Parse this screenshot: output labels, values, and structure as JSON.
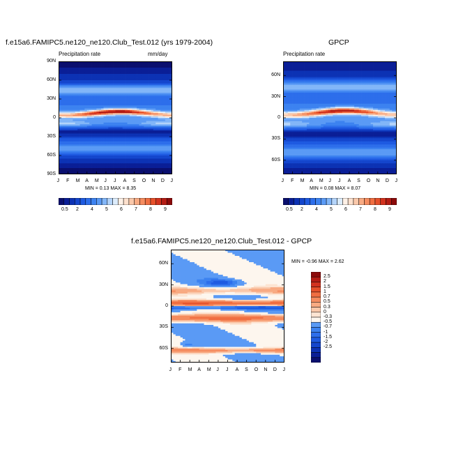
{
  "colors": {
    "blues": [
      "#0a0f6e",
      "#0a1e96",
      "#0c32b4",
      "#1446cd",
      "#1e5ae1",
      "#2d6eeb",
      "#3c82f0",
      "#5a9af5",
      "#82b6f8",
      "#b4d4fa",
      "#dcecfc"
    ],
    "whites": [
      "#fdf0e6",
      "#fde0cd"
    ],
    "reds": [
      "#fac8aa",
      "#f8aa82",
      "#f58c5f",
      "#f06e41",
      "#e6502a",
      "#d2321e",
      "#b41c14",
      "#8c0a0a"
    ]
  },
  "chart_data": [
    {
      "id": "model",
      "type": "heatmap",
      "title": "f.e15a6.FAMIPC5.ne120_ne120.Club_Test.012 (yrs 1979-2004)",
      "left_label": "Precipitation rate",
      "right_label": "mm/day",
      "x_ticks": [
        "J",
        "F",
        "M",
        "A",
        "M",
        "J",
        "J",
        "A",
        "S",
        "O",
        "N",
        "D",
        "J"
      ],
      "y_ticks": [
        "90N",
        "60N",
        "30N",
        "0",
        "30S",
        "60S",
        "90S"
      ],
      "y_values": [
        90,
        60,
        30,
        0,
        -30,
        -60,
        -90
      ],
      "stats": "MIN =   0.13 MAX =   8.35",
      "colorbar_labels": [
        "0.5",
        "2",
        "4",
        "5",
        "6",
        "7",
        "8",
        "9"
      ]
    },
    {
      "id": "gpcp",
      "type": "heatmap",
      "title": "GPCP",
      "left_label": "Precipitation rate",
      "x_ticks": [
        "J",
        "F",
        "M",
        "A",
        "M",
        "J",
        "J",
        "A",
        "S",
        "O",
        "N",
        "D",
        "J"
      ],
      "y_ticks": [
        "60N",
        "30N",
        "0",
        "30S",
        "60S"
      ],
      "y_values": [
        60,
        30,
        0,
        -30,
        -60
      ],
      "stats": "MIN =   0.08 MAX =   8.07",
      "colorbar_labels": [
        "0.5",
        "2",
        "4",
        "5",
        "6",
        "7",
        "8",
        "9"
      ]
    },
    {
      "id": "diff",
      "type": "heatmap",
      "title": "f.e15a6.FAMIPC5.ne120_ne120.Club_Test.012 - GPCP",
      "x_ticks": [
        "J",
        "F",
        "M",
        "A",
        "M",
        "J",
        "J",
        "A",
        "S",
        "O",
        "N",
        "D",
        "J"
      ],
      "y_ticks": [
        "60N",
        "30N",
        "0",
        "30S",
        "60S"
      ],
      "y_values": [
        60,
        30,
        0,
        -30,
        -60
      ],
      "stats": "MIN =   -0.96 MAX =   2.62",
      "colorbar_labels": [
        "2.5",
        "2",
        "1.5",
        "1",
        "0.7",
        "0.5",
        "0.3",
        "0",
        "-0.3",
        "-0.5",
        "-0.7",
        "-1",
        "-1.5",
        "-2",
        "-2.5"
      ]
    }
  ]
}
